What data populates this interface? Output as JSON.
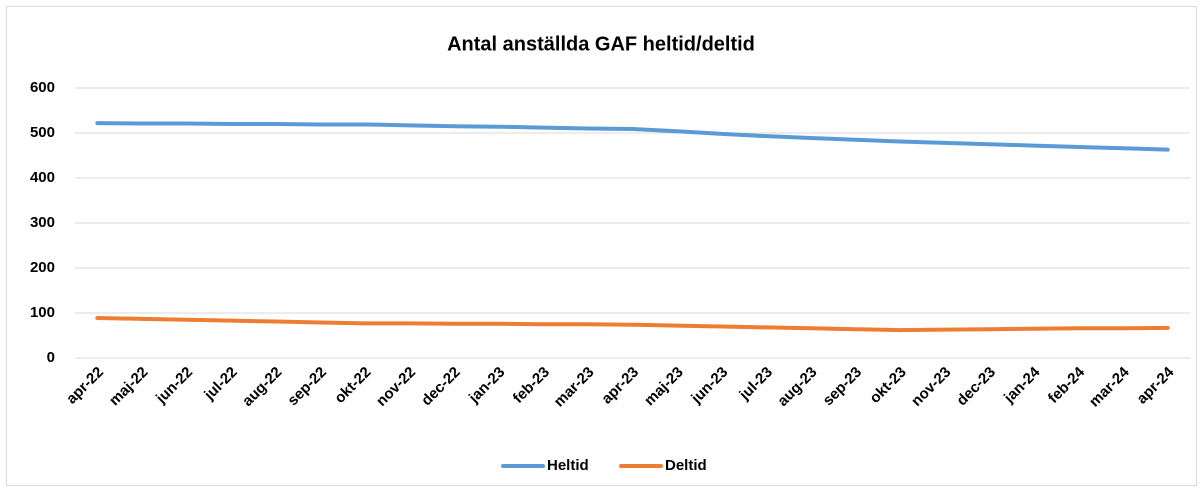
{
  "chart_data": {
    "type": "line",
    "title": "Antal anställda GAF heltid/deltid",
    "categories": [
      "apr-22",
      "maj-22",
      "jun-22",
      "jul-22",
      "aug-22",
      "sep-22",
      "okt-22",
      "nov-22",
      "dec-22",
      "jan-23",
      "feb-23",
      "mar-23",
      "apr-23",
      "maj-23",
      "jun-23",
      "jul-23",
      "aug-23",
      "sep-23",
      "okt-23",
      "nov-23",
      "dec-23",
      "jan-24",
      "feb-24",
      "mar-24",
      "apr-24"
    ],
    "series": [
      {
        "name": "Heltid",
        "color": "#5b9bd5",
        "values": [
          522,
          521,
          521,
          520,
          520,
          519,
          519,
          517,
          515,
          514,
          512,
          510,
          509,
          504,
          498,
          493,
          489,
          485,
          481,
          478,
          475,
          472,
          469,
          466,
          463
        ]
      },
      {
        "name": "Deltid",
        "color": "#ed7d31",
        "values": [
          89,
          87,
          85,
          83,
          81,
          79,
          77,
          77,
          76,
          76,
          75,
          75,
          74,
          72,
          70,
          68,
          66,
          64,
          62,
          63,
          64,
          65,
          66,
          66,
          67
        ]
      }
    ],
    "ylim": [
      0,
      600
    ],
    "yticks": [
      0,
      100,
      200,
      300,
      400,
      500,
      600
    ],
    "grid": true,
    "legend": "bottom"
  }
}
